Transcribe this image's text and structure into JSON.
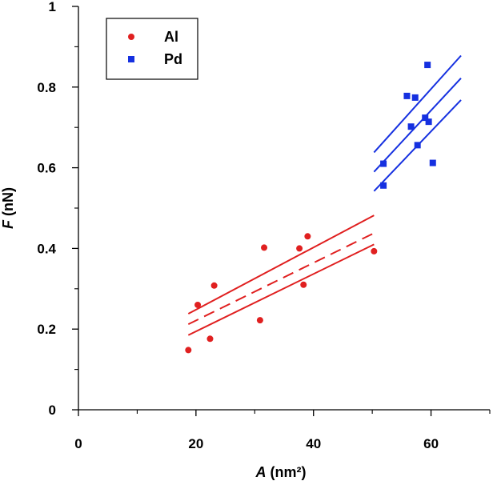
{
  "chart_data": {
    "type": "scatter",
    "xlabel": {
      "italic": "A",
      "rest": " (nm²)"
    },
    "ylabel": {
      "italic": "F",
      "rest": " (nN)"
    },
    "xlim": [
      0,
      70
    ],
    "ylim": [
      0,
      1
    ],
    "xticks": [
      0,
      20,
      40,
      60
    ],
    "xtick_labels": [
      "0",
      "20",
      "40",
      "60"
    ],
    "xminor_ticks": [
      10,
      30,
      50,
      70
    ],
    "yticks": [
      0,
      0.2,
      0.4,
      0.6,
      0.8,
      1
    ],
    "ytick_labels": [
      "0",
      "0.2",
      "0.4",
      "0.6",
      "0.8",
      "1"
    ],
    "yminor_ticks": [
      0.1,
      0.3,
      0.5,
      0.7,
      0.9
    ],
    "grid": false,
    "legend_position": "top-left",
    "series": [
      {
        "name": "Al",
        "marker": "circle",
        "color": "#e02020",
        "points": [
          [
            18.7,
            0.148
          ],
          [
            20.3,
            0.26
          ],
          [
            22.4,
            0.176
          ],
          [
            23.1,
            0.308
          ],
          [
            30.9,
            0.222
          ],
          [
            31.6,
            0.402
          ],
          [
            37.6,
            0.4
          ],
          [
            38.3,
            0.31
          ],
          [
            39.0,
            0.43
          ],
          [
            50.3,
            0.393
          ]
        ],
        "fit": {
          "style": "dashed",
          "x_range": [
            18.7,
            50.3
          ],
          "y_range": [
            0.212,
            0.438
          ]
        },
        "confidence_upper": [
          [
            18.7,
            0.238
          ],
          [
            50.3,
            0.482
          ]
        ],
        "confidence_lower": [
          [
            18.7,
            0.185
          ],
          [
            50.3,
            0.41
          ]
        ]
      },
      {
        "name": "Pd",
        "marker": "square",
        "color": "#1530e0",
        "points": [
          [
            51.9,
            0.556
          ],
          [
            51.9,
            0.61
          ],
          [
            55.9,
            0.778
          ],
          [
            56.6,
            0.702
          ],
          [
            57.3,
            0.774
          ],
          [
            57.7,
            0.656
          ],
          [
            59.0,
            0.724
          ],
          [
            59.4,
            0.855
          ],
          [
            59.6,
            0.714
          ],
          [
            60.3,
            0.612
          ]
        ],
        "fit": {
          "style": "solid",
          "x_range": [
            50.3,
            65.1
          ],
          "y_range": [
            0.59,
            0.822
          ]
        },
        "confidence_upper": [
          [
            50.3,
            0.638
          ],
          [
            65.1,
            0.878
          ]
        ],
        "confidence_lower": [
          [
            50.3,
            0.542
          ],
          [
            65.1,
            0.768
          ]
        ]
      }
    ]
  }
}
